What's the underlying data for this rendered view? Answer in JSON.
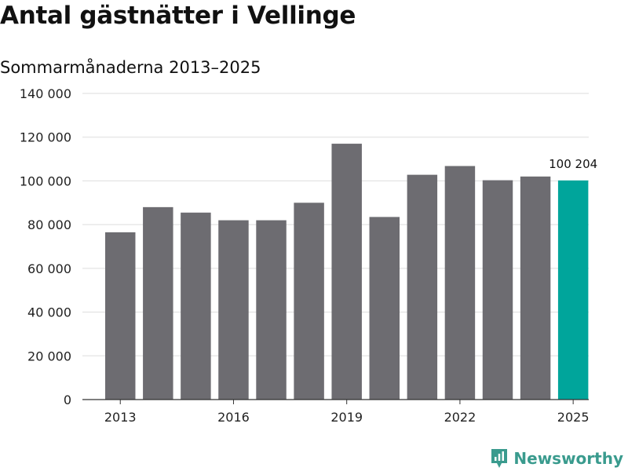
{
  "header": {
    "title": "Antal gästnätter i Vellinge",
    "subtitle": "Sommarmånaderna 2013–2025"
  },
  "brand": {
    "name": "Newsworthy",
    "icon": "newsworthy-logo-icon",
    "color": "#3a9b8e"
  },
  "chart_data": {
    "type": "bar",
    "title": "Antal gästnätter i Vellinge",
    "subtitle": "Sommarmånaderna 2013–2025",
    "categories": [
      "2013",
      "2014",
      "2015",
      "2016",
      "2017",
      "2018",
      "2019",
      "2020",
      "2021",
      "2022",
      "2023",
      "2024",
      "2025"
    ],
    "values": [
      76500,
      88000,
      85500,
      82000,
      82000,
      90000,
      117000,
      83500,
      102800,
      106800,
      100300,
      102000,
      100204
    ],
    "ylim": [
      0,
      140000
    ],
    "yticks": [
      0,
      20000,
      40000,
      60000,
      80000,
      100000,
      120000,
      140000
    ],
    "ytick_labels": [
      "0",
      "20 000",
      "40 000",
      "60 000",
      "80 000",
      "100 000",
      "120 000",
      "140 000"
    ],
    "xtick_labels": [
      "2013",
      "2016",
      "2019",
      "2022",
      "2025"
    ],
    "grid": true,
    "legend": "none",
    "highlight": {
      "category": "2025",
      "label": "100 204"
    },
    "colors": {
      "bar": "#6d6c71",
      "highlight": "#00a59b",
      "grid": "#dddddd",
      "axis": "#333333"
    }
  }
}
